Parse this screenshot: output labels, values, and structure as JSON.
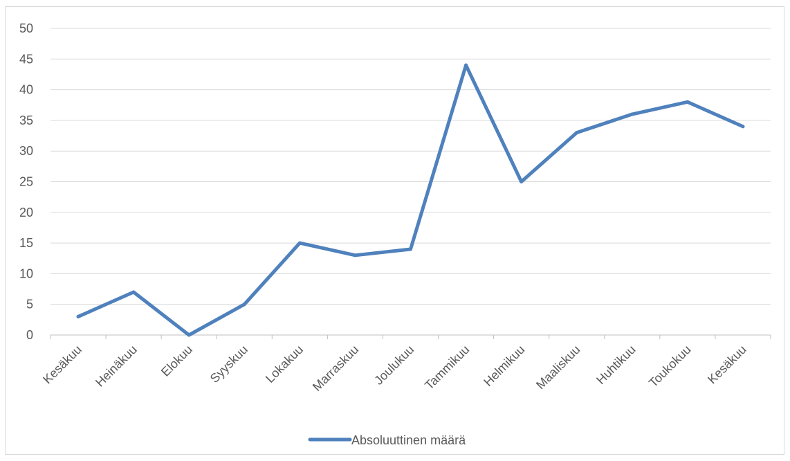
{
  "chart_data": {
    "type": "line",
    "categories": [
      "Kesäkuu",
      "Heinäkuu",
      "Elokuu",
      "Syyskuu",
      "Lokakuu",
      "Marraskuu",
      "Joulukuu",
      "Tammikuu",
      "Helmikuu",
      "Maaliskuu",
      "Huhtikuu",
      "Toukokuu",
      "Kesäkuu"
    ],
    "series": [
      {
        "name": "Absoluuttinen määrä",
        "values": [
          3,
          7,
          0,
          5,
          15,
          13,
          14,
          44,
          25,
          33,
          36,
          38,
          34
        ],
        "color": "#4f81bd"
      }
    ],
    "ylim": [
      0,
      50
    ],
    "yticks": [
      "0",
      "5",
      "10",
      "15",
      "20",
      "25",
      "30",
      "35",
      "40",
      "45",
      "50"
    ],
    "grid": true,
    "legend_position": "bottom",
    "gridline_color": "#d9d9d9",
    "axis_color": "#bfbfbf"
  }
}
